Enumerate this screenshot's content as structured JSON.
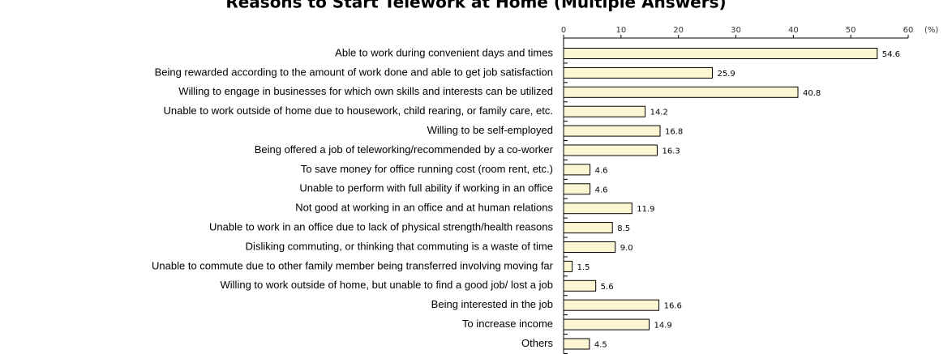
{
  "chart_data": {
    "type": "barh",
    "title": "Reasons to Start Telework at Home (Multiple Answers)",
    "x_unit": "(%)",
    "categories": [
      "Able to work during convenient days and times",
      "Being rewarded according to the amount of work done and able to get job satisfaction",
      "Willing to engage in businesses for which own skills and interests can be utilized",
      "Unable to work outside of home due to housework, child rearing, or family care, etc.",
      "Willing to be self-employed",
      "Being offered a job of teleworking/recommended by a co-worker",
      "To save money for office running cost (room rent, etc.)",
      "Unable to perform with full ability if working in an office",
      "Not good at working in an office and at human relations",
      "Unable to work in an office due to lack of physical strength/health reasons",
      "Disliking commuting, or thinking that commuting is a waste of time",
      "Unable to commute due to other family member being transferred involving moving far",
      "Willing to work outside of home, but unable to find a good job/ lost a job",
      "Being interested in the job",
      "To increase income",
      "Others"
    ],
    "values": [
      54.6,
      25.9,
      40.8,
      14.2,
      16.8,
      16.3,
      4.6,
      4.6,
      11.9,
      8.5,
      9.0,
      1.5,
      5.6,
      16.6,
      14.9,
      4.5
    ],
    "value_labels": [
      "54.6",
      "25.9",
      "40.8",
      "14.2",
      "16.8",
      "16.3",
      "4.6",
      "4.6",
      "11.9",
      "8.5",
      "9.0",
      "1.5",
      "5.6",
      "16.6",
      "14.9",
      "4.5"
    ],
    "color": "#fdf6d2",
    "xlim": [
      0,
      60
    ],
    "xticks": [
      0,
      10,
      20,
      30,
      40,
      50,
      60
    ]
  }
}
